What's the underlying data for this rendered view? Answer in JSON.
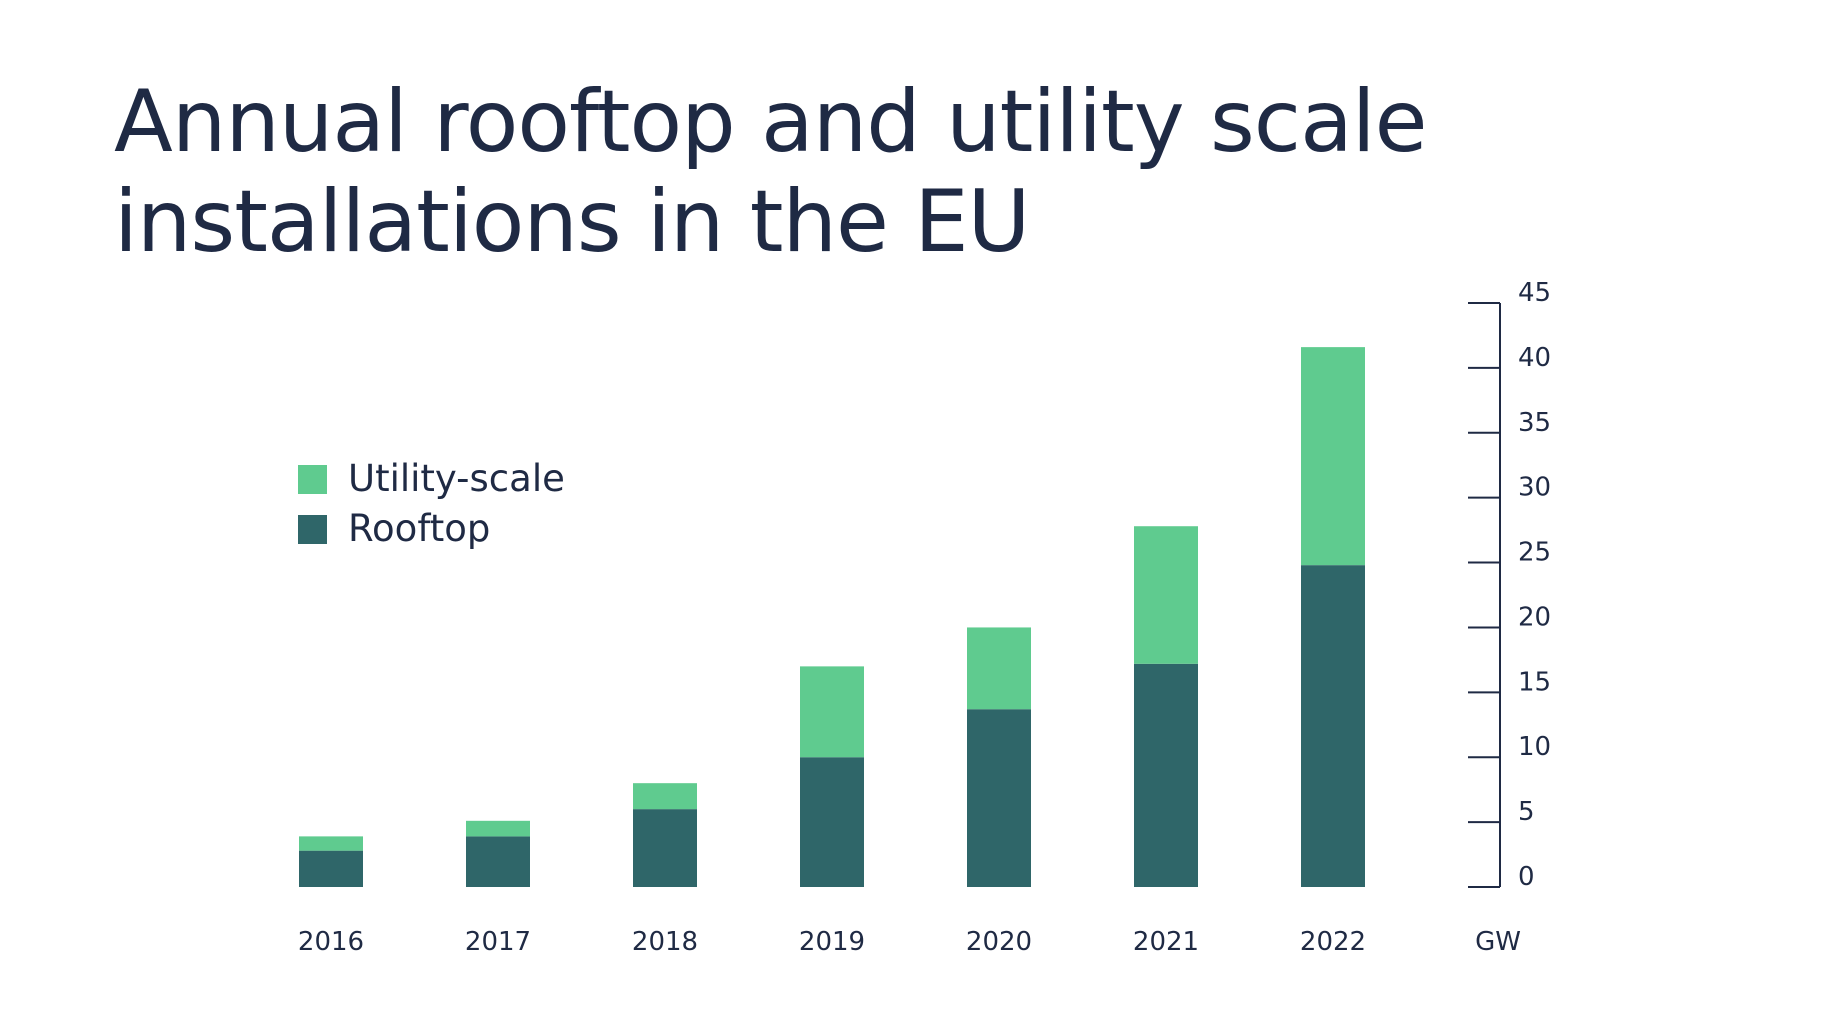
{
  "chart_data": {
    "type": "bar",
    "stacked": true,
    "title": "Annual rooftop and utility scale installations in the EU",
    "categories": [
      "2016",
      "2017",
      "2018",
      "2019",
      "2020",
      "2021",
      "2022"
    ],
    "series": [
      {
        "name": "Rooftop",
        "color": "#2f6669",
        "values": [
          2.8,
          3.9,
          6.0,
          10.0,
          13.7,
          17.2,
          24.8
        ]
      },
      {
        "name": "Utility-scale",
        "color": "#5fcb8f",
        "values": [
          1.1,
          1.2,
          2.0,
          7.0,
          6.3,
          10.6,
          16.8
        ]
      }
    ],
    "legend_order": [
      "Utility-scale",
      "Rooftop"
    ],
    "legend_position": "left",
    "ylim": [
      0,
      45
    ],
    "yticks": [
      0,
      5,
      10,
      15,
      20,
      25,
      30,
      35,
      40,
      45
    ],
    "yaxis_side": "right",
    "unit": "GW",
    "grid": false
  }
}
